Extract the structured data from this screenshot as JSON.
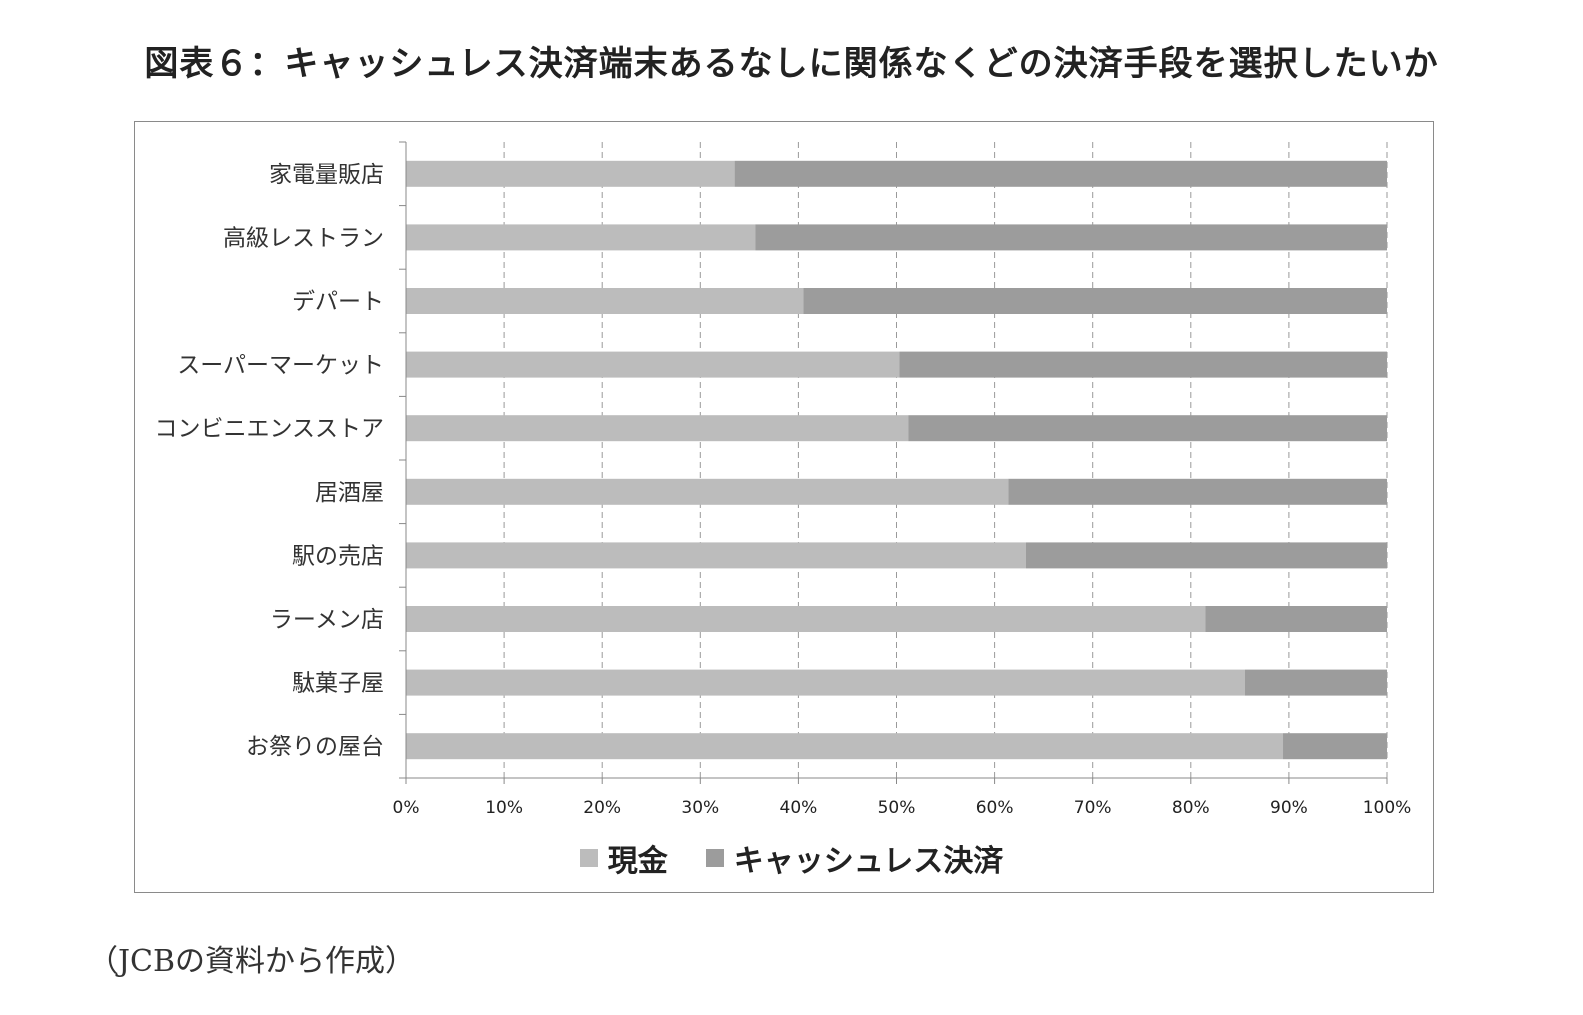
{
  "title": "図表６：キャッシュレス決済端末あるなしに関係なくどの決済手段を選択したいか",
  "source_note": "（JCBの資料から作成）",
  "colors": {
    "cash": "#bcbcbc",
    "cashless": "#9c9c9c",
    "grid": "#9a9a9a",
    "axis": "#888888"
  },
  "chart_data": {
    "type": "bar",
    "orientation": "horizontal",
    "stacked": "percent",
    "title": "図表６：キャッシュレス決済端末あるなしに関係なくどの決済手段を選択したいか",
    "categories": [
      "家電量販店",
      "高級レストラン",
      "デパート",
      "スーパーマーケット",
      "コンビニエンスストア",
      "居酒屋",
      "駅の売店",
      "ラーメン店",
      "駄菓子屋",
      "お祭りの屋台"
    ],
    "series": [
      {
        "name": "現金",
        "values": [
          33.5,
          35.6,
          40.5,
          50.3,
          51.2,
          61.4,
          63.2,
          81.5,
          85.5,
          89.4
        ]
      },
      {
        "name": "キャッシュレス決済",
        "values": [
          66.5,
          64.4,
          59.5,
          49.7,
          48.8,
          38.6,
          36.8,
          18.5,
          14.5,
          10.6
        ]
      }
    ],
    "x_ticks": [
      "0%",
      "10%",
      "20%",
      "30%",
      "40%",
      "50%",
      "60%",
      "70%",
      "80%",
      "90%",
      "100%"
    ],
    "xlim": [
      0,
      100
    ],
    "grid": "vertical dashed",
    "legend_position": "bottom"
  }
}
